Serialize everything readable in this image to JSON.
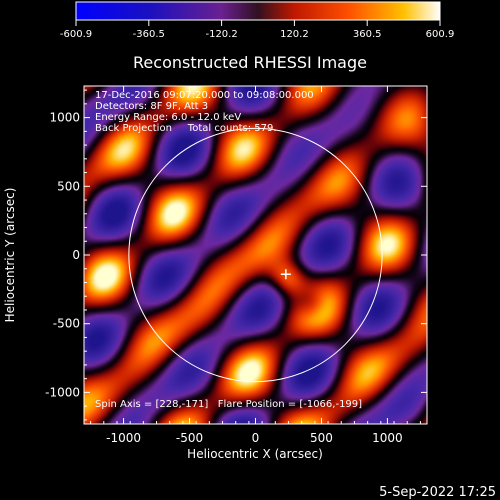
{
  "chart_data": {
    "type": "heatmap",
    "title": "Reconstructed RHESSI Image",
    "xlabel": "Heliocentric X (arcsec)",
    "ylabel": "Heliocentric Y (arcsec)",
    "xlim": [
      -1300,
      1300
    ],
    "ylim": [
      -1230,
      1230
    ],
    "x_ticks": [
      -1000,
      -500,
      0,
      500,
      1000
    ],
    "y_ticks": [
      -1000,
      -500,
      0,
      500,
      1000
    ],
    "x_tick_labels": [
      "-1000",
      "-500",
      "0",
      "500",
      "1000"
    ],
    "y_tick_labels": [
      "-1000",
      "-500",
      "0",
      "500",
      "1000"
    ],
    "colorbar": {
      "min": -600.9,
      "max": 600.9,
      "tick_values": [
        -600.9,
        -360.5,
        -120.2,
        120.2,
        360.5,
        600.9
      ],
      "tick_labels": [
        "-600.9",
        "-360.5",
        "-120.2",
        "120.2",
        "360.5",
        "600.9"
      ]
    },
    "annotations": {
      "line1": "17-Dec-2016 09:07:20.000 to 09:08:00.000",
      "line2": "Detectors: 8F 9F, Att 3",
      "line3": "Energy Range: 6.0 - 12.0 keV",
      "line4": "Back Projection     Total counts: 579.",
      "bottom": "Spin Axis = [228,-171]   Flare Position = [-1066,-199]"
    },
    "solar_limb": {
      "center": [
        0,
        0
      ],
      "radius": 960
    },
    "flare_marker": {
      "x": 230,
      "y": -140
    },
    "grid": false
  },
  "footer": {
    "timestamp": "5-Sep-2022 17:25"
  }
}
